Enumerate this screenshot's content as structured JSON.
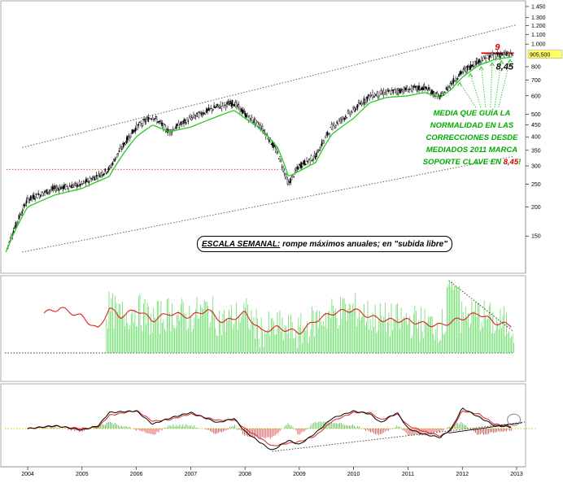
{
  "chart_data": [
    {
      "type": "candlestick",
      "panel": "price",
      "scale": "log",
      "ylim": [
        120,
        1450
      ],
      "yticks": [
        150,
        200,
        250,
        300,
        350,
        400,
        450,
        500,
        600,
        700,
        800,
        1000,
        1100,
        1200,
        1300,
        1450
      ],
      "ytick_labels": [
        "150",
        "200",
        "250",
        "300",
        "350",
        "400",
        "450",
        "500",
        "600",
        "700",
        "800",
        "1.000",
        "1.100",
        "1.200",
        "1.300",
        "1.450"
      ],
      "last_price_label": "905,500",
      "x_ticks": [
        "2004",
        "2005",
        "2006",
        "2007",
        "2008",
        "2009",
        "2010",
        "2011",
        "2012",
        "2013"
      ],
      "series": [
        {
          "kind": "close_path",
          "x": [
            2003.6,
            2004.0,
            2004.5,
            2005.0,
            2005.5,
            2006.0,
            2006.3,
            2006.6,
            2007.0,
            2007.5,
            2007.8,
            2008.0,
            2008.3,
            2008.6,
            2008.8,
            2009.0,
            2009.3,
            2009.6,
            2010.0,
            2010.3,
            2010.6,
            2011.0,
            2011.3,
            2011.6,
            2011.8,
            2012.0,
            2012.3,
            2012.6,
            2012.9
          ],
          "y": [
            128,
            215,
            240,
            250,
            290,
            440,
            490,
            420,
            480,
            540,
            560,
            500,
            440,
            340,
            250,
            300,
            330,
            440,
            520,
            600,
            620,
            640,
            650,
            590,
            680,
            760,
            850,
            900,
            905
          ]
        },
        {
          "kind": "moving_average",
          "x": [
            2003.6,
            2004.0,
            2004.5,
            2005.0,
            2005.5,
            2006.0,
            2006.3,
            2006.6,
            2007.0,
            2007.5,
            2007.8,
            2008.0,
            2008.3,
            2008.6,
            2008.8,
            2009.0,
            2009.3,
            2009.6,
            2010.0,
            2010.3,
            2010.6,
            2011.0,
            2011.3,
            2011.6,
            2011.8,
            2012.0,
            2012.3,
            2012.6,
            2012.9
          ],
          "y": [
            128,
            200,
            225,
            240,
            270,
            400,
            450,
            420,
            440,
            490,
            520,
            480,
            430,
            360,
            270,
            285,
            310,
            410,
            480,
            560,
            590,
            600,
            620,
            590,
            640,
            720,
            810,
            860,
            880
          ]
        }
      ],
      "channel_upper": {
        "x": [
          2003.9,
          2013.0
        ],
        "y": [
          360,
          1210
        ]
      },
      "channel_lower": {
        "x": [
          2003.9,
          2012.95
        ],
        "y": [
          128,
          330
        ]
      },
      "support_level_label": "8,45",
      "max_level_label": "9",
      "annotation": [
        "MEDIA QUE GUÍA LA",
        "NORMALIDAD EN LAS",
        "CORRECCIONES DESDE",
        "MEDIADOS 2011 MARCA",
        "SOPORTE CLAVE EN 8,45!"
      ],
      "note": {
        "title": "ESCALA SEMANAL:",
        "text": " rompe máximos anuales; en \"subida libre\""
      }
    },
    {
      "type": "bar",
      "panel": "indicator_1",
      "series": [
        {
          "name": "",
          "kind": "line",
          "x": [
            2004.3,
            2004.6,
            2005.0,
            2005.3,
            2005.5,
            2005.7,
            2006.0,
            2006.3,
            2006.6,
            2007.0,
            2007.3,
            2007.6,
            2008.0,
            2008.3,
            2008.6,
            2009.0,
            2009.3,
            2009.6,
            2010.0,
            2010.3,
            2010.6,
            2011.0,
            2011.3,
            2011.6,
            2012.0,
            2012.3,
            2012.6,
            2012.9
          ],
          "y": [
            0.55,
            0.62,
            0.5,
            0.32,
            0.62,
            0.5,
            0.6,
            0.45,
            0.55,
            0.5,
            0.6,
            0.42,
            0.55,
            0.3,
            0.35,
            0.28,
            0.45,
            0.55,
            0.6,
            0.5,
            0.45,
            0.45,
            0.4,
            0.38,
            0.48,
            0.55,
            0.42,
            0.38
          ]
        }
      ]
    },
    {
      "type": "line",
      "panel": "indicator_2",
      "series": [
        {
          "name": "",
          "x": [
            2004.0,
            2004.5,
            2005.0,
            2005.3,
            2005.5,
            2006.0,
            2006.3,
            2006.6,
            2007.0,
            2007.5,
            2007.8,
            2008.0,
            2008.3,
            2008.5,
            2008.8,
            2009.0,
            2009.3,
            2009.6,
            2010.0,
            2010.3,
            2010.5,
            2010.8,
            2011.0,
            2011.3,
            2011.6,
            2011.8,
            2012.0,
            2012.3,
            2012.6,
            2012.9
          ],
          "y": [
            0.0,
            0.1,
            -0.05,
            0.1,
            0.55,
            0.6,
            0.15,
            0.35,
            0.55,
            0.2,
            0.35,
            -0.1,
            -0.5,
            -0.75,
            -0.4,
            -0.55,
            -0.15,
            0.35,
            0.6,
            0.5,
            0.2,
            0.55,
            0.0,
            -0.2,
            -0.3,
            0.0,
            0.7,
            0.4,
            0.1,
            0.05
          ]
        },
        {
          "name": "",
          "x": [
            2004.0,
            2004.5,
            2005.0,
            2005.3,
            2005.5,
            2006.0,
            2006.3,
            2006.6,
            2007.0,
            2007.5,
            2007.8,
            2008.0,
            2008.3,
            2008.5,
            2008.8,
            2009.0,
            2009.3,
            2009.6,
            2010.0,
            2010.3,
            2010.5,
            2010.8,
            2011.0,
            2011.3,
            2011.6,
            2011.8,
            2012.0,
            2012.3,
            2012.6,
            2012.9
          ],
          "y": [
            0.0,
            0.08,
            0.0,
            0.05,
            0.45,
            0.62,
            0.25,
            0.3,
            0.5,
            0.28,
            0.3,
            0.0,
            -0.35,
            -0.6,
            -0.5,
            -0.45,
            -0.25,
            0.25,
            0.55,
            0.55,
            0.3,
            0.5,
            0.1,
            -0.1,
            -0.25,
            -0.05,
            0.6,
            0.5,
            0.15,
            0.08
          ]
        }
      ]
    }
  ]
}
